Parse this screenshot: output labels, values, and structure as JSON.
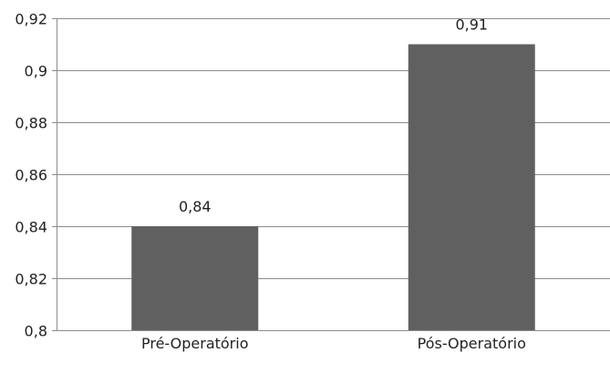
{
  "chart_data": {
    "type": "bar",
    "title": "",
    "xlabel": "",
    "ylabel": "",
    "categories": [
      "Pré-Operatório",
      "Pós-Operatório"
    ],
    "values": [
      0.84,
      0.91
    ],
    "data_labels": [
      "0,84",
      "0,91"
    ],
    "ylim": [
      0.8,
      0.92
    ],
    "yticks": [
      0.8,
      0.82,
      0.84,
      0.86,
      0.88,
      0.9,
      0.92
    ],
    "ytick_labels": [
      "0,8",
      "0,82",
      "0,84",
      "0,86",
      "0,88",
      "0,9",
      "0,92"
    ],
    "grid": true,
    "legend": "none",
    "colors": {
      "bar": "#606060",
      "grid": "#8c8c8c",
      "axis": "#8c8c8c"
    }
  }
}
